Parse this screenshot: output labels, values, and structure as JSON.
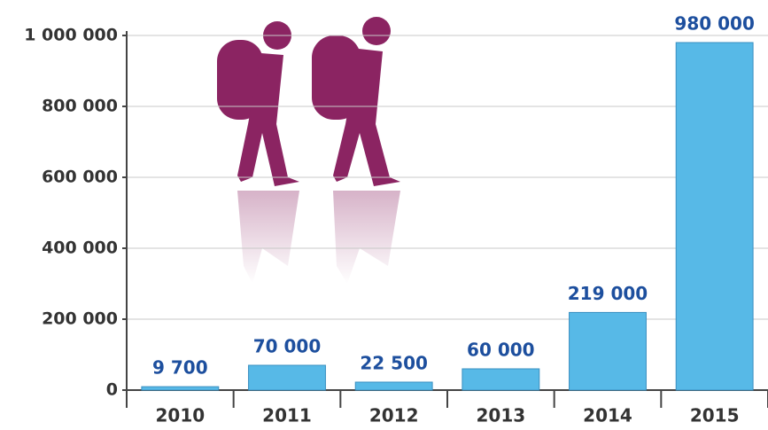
{
  "chart_data": {
    "type": "bar",
    "categories": [
      "2010",
      "2011",
      "2012",
      "2013",
      "2014",
      "2015"
    ],
    "values": [
      9700,
      70000,
      22500,
      60000,
      219000,
      980000
    ],
    "value_labels": [
      "9 700",
      "70 000",
      "22 500",
      "60 000",
      "219 000",
      "980 000"
    ],
    "color": "#57b9e7",
    "ylim": [
      0,
      1000000
    ],
    "yticks": [
      0,
      {
        "value": 200000,
        "label": "200 000"
      },
      {
        "value": 400000,
        "label": "400 000"
      },
      {
        "value": 600000,
        "label": "600 000"
      },
      {
        "value": 800000,
        "label": "800 000"
      },
      {
        "value": 1000000,
        "label": "1 000 000"
      }
    ],
    "grid": true
  }
}
